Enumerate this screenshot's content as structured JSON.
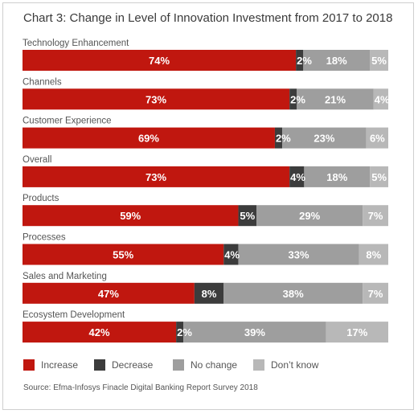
{
  "chart_data": {
    "type": "bar",
    "orientation": "horizontal",
    "stacked": true,
    "title": "Chart 3: Change in Level of Innovation Investment from 2017 to 2018",
    "categories": [
      "Technology Enhancement",
      "Channels",
      "Customer Experience",
      "Overall",
      "Products",
      "Processes",
      "Sales and Marketing",
      "Ecosystem Development"
    ],
    "series": [
      {
        "name": "Increase",
        "color": "#c0170f",
        "values": [
          74,
          73,
          69,
          73,
          59,
          55,
          47,
          42
        ]
      },
      {
        "name": "Decrease",
        "color": "#3c3c3c",
        "values": [
          2,
          2,
          2,
          4,
          5,
          4,
          8,
          2
        ]
      },
      {
        "name": "No change",
        "color": "#9e9e9e",
        "values": [
          18,
          21,
          23,
          18,
          29,
          33,
          38,
          39
        ]
      },
      {
        "name": "Don’t know",
        "color": "#b8b8b8",
        "values": [
          5,
          4,
          6,
          5,
          7,
          8,
          7,
          17
        ]
      }
    ],
    "data_labels": [
      [
        "74%",
        "2%",
        "18%",
        "5%"
      ],
      [
        "73%",
        "2%",
        "21%",
        "4%"
      ],
      [
        "69%",
        "2%",
        "23%",
        "6%"
      ],
      [
        "73%",
        "4%",
        "18%",
        "5%"
      ],
      [
        "59%",
        "5%",
        "29%",
        "7%"
      ],
      [
        "55%",
        "4%",
        "33%",
        "8%"
      ],
      [
        "47%",
        "8%",
        "38%",
        "7%"
      ],
      [
        "42%",
        "2%",
        "39%",
        "17%"
      ]
    ],
    "legend_position": "bottom-left",
    "source": "Source: Efma-Infosys Finacle Digital Banking Report Survey 2018"
  }
}
